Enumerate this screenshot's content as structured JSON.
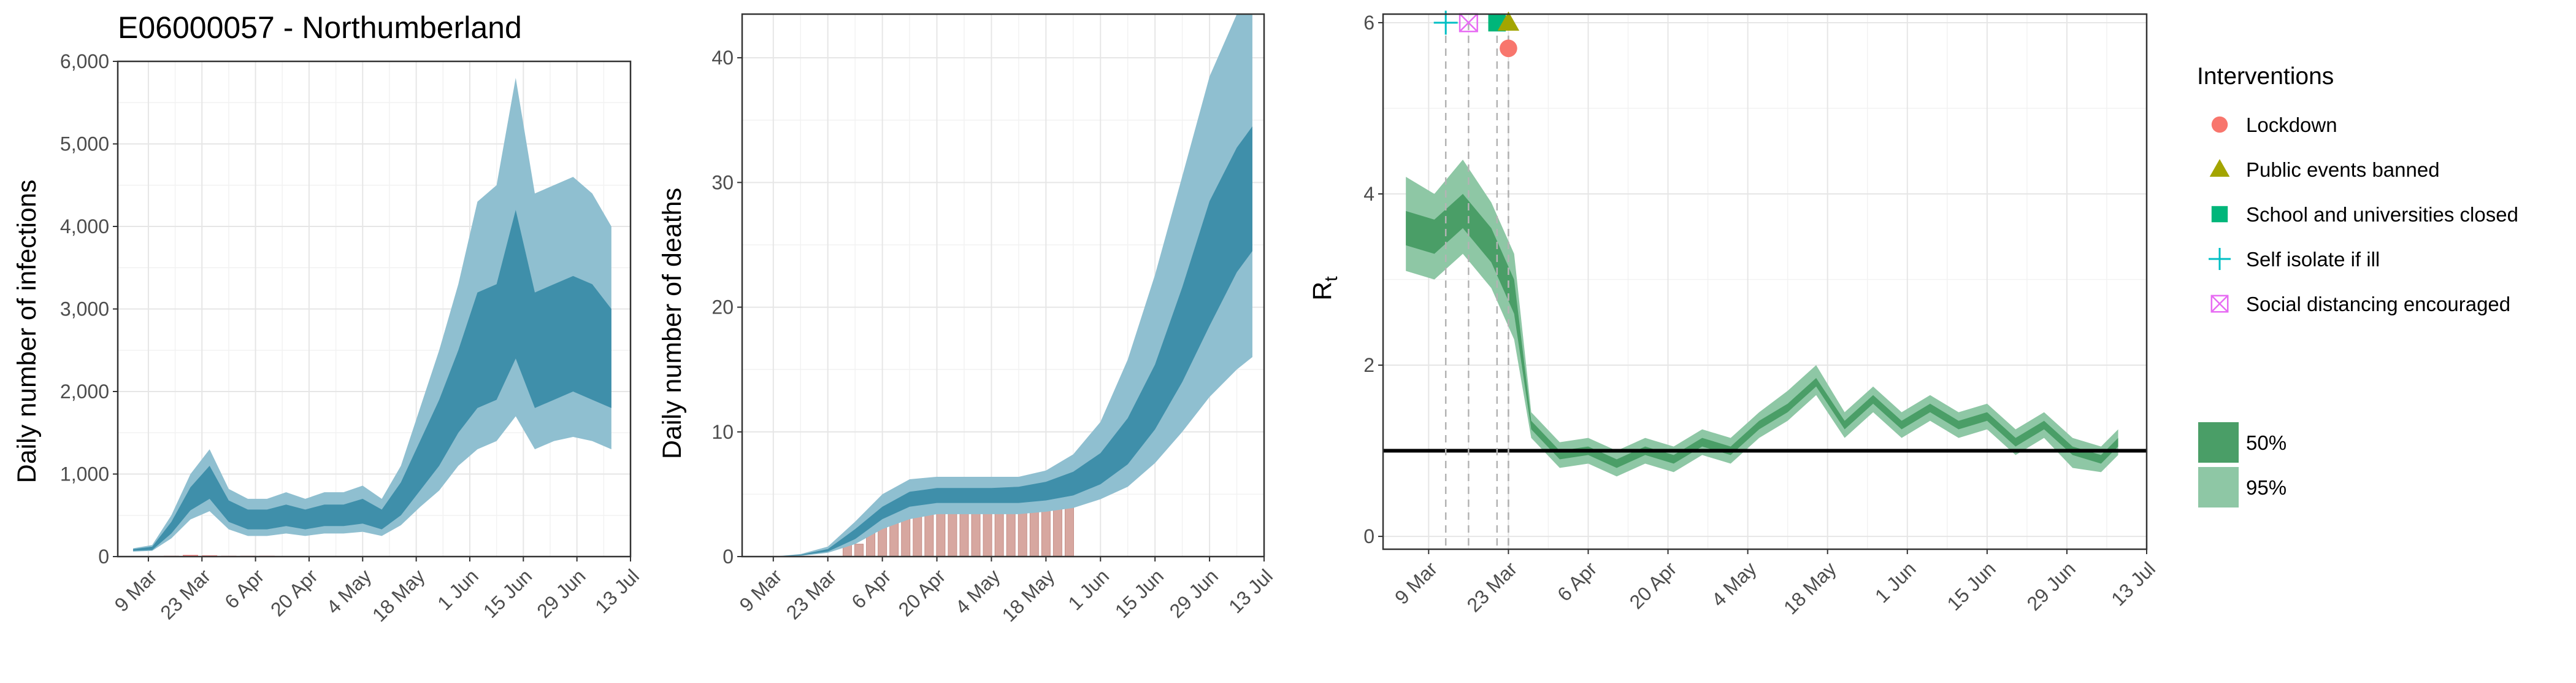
{
  "chart_data": [
    {
      "type": "area",
      "title": "E06000057 - Northumberland",
      "ylabel": "Daily number of infections",
      "x_ticks": [
        "9 Mar",
        "23 Mar",
        "6 Apr",
        "20 Apr",
        "4 May",
        "18 May",
        "1 Jun",
        "15 Jun",
        "29 Jun",
        "13 Jul"
      ],
      "x_range": [
        "2020-03-01",
        "2020-07-13"
      ],
      "y_ticks": [
        "0",
        "1,000",
        "2,000",
        "3,000",
        "4,000",
        "5,000",
        "6,000"
      ],
      "ylim": [
        0,
        6000
      ],
      "grid": true,
      "colors": {
        "band95": "#8fbfd0",
        "band50": "#3f8faa"
      },
      "x": [
        "2020-03-05",
        "2020-03-10",
        "2020-03-15",
        "2020-03-20",
        "2020-03-25",
        "2020-03-30",
        "2020-04-04",
        "2020-04-09",
        "2020-04-14",
        "2020-04-19",
        "2020-04-24",
        "2020-04-29",
        "2020-05-04",
        "2020-05-09",
        "2020-05-14",
        "2020-05-19",
        "2020-05-24",
        "2020-05-29",
        "2020-06-03",
        "2020-06-08",
        "2020-06-13",
        "2020-06-18",
        "2020-06-23",
        "2020-06-28",
        "2020-07-03",
        "2020-07-08"
      ],
      "series": [
        {
          "values": [
            80,
            100,
            350,
            700,
            900,
            550,
            450,
            450,
            500,
            450,
            500,
            500,
            550,
            450,
            700,
            1100,
            1500,
            2000,
            2500,
            2600,
            3300,
            2500,
            2600,
            2700,
            2600,
            2400
          ]
        },
        {
          "values": [
            70,
            80,
            280,
            560,
            700,
            420,
            330,
            330,
            370,
            330,
            370,
            370,
            400,
            330,
            500,
            800,
            1100,
            1500,
            1800,
            1900,
            2400,
            1800,
            1900,
            2000,
            1900,
            1800
          ]
        },
        {
          "values": [
            90,
            120,
            420,
            840,
            1100,
            680,
            570,
            570,
            630,
            570,
            630,
            630,
            700,
            570,
            900,
            1400,
            1900,
            2500,
            3200,
            3300,
            4200,
            3200,
            3300,
            3400,
            3300,
            3000
          ]
        },
        {
          "values": [
            60,
            70,
            220,
            450,
            550,
            330,
            250,
            250,
            280,
            250,
            280,
            280,
            300,
            250,
            380,
            600,
            800,
            1100,
            1300,
            1400,
            1700,
            1300,
            1400,
            1450,
            1400,
            1300
          ]
        },
        {
          "values": [
            100,
            140,
            500,
            1000,
            1300,
            820,
            700,
            700,
            780,
            700,
            780,
            780,
            860,
            700,
            1100,
            1800,
            2500,
            3300,
            4300,
            4500,
            5800,
            4400,
            4500,
            4600,
            4400,
            4000
          ]
        }
      ],
      "observed": [
        0,
        0,
        10,
        20,
        15,
        10,
        10,
        10,
        5,
        5,
        5,
        5,
        0,
        0,
        0,
        0,
        0,
        0,
        0,
        0,
        0,
        0,
        0,
        0,
        0,
        0
      ]
    },
    {
      "type": "area",
      "ylabel": "Daily number of deaths",
      "x_ticks": [
        "9 Mar",
        "23 Mar",
        "6 Apr",
        "20 Apr",
        "4 May",
        "18 May",
        "1 Jun",
        "15 Jun",
        "29 Jun",
        "13 Jul"
      ],
      "x_range": [
        "2020-03-01",
        "2020-07-13"
      ],
      "y_ticks": [
        "0",
        "10",
        "20",
        "30",
        "40"
      ],
      "ylim": [
        0,
        43.5
      ],
      "grid": true,
      "colors": {
        "band95": "#8fbfd0",
        "band50": "#3f8faa",
        "deaths": "#d7a7a0"
      },
      "x": [
        "2020-03-09",
        "2020-03-16",
        "2020-03-23",
        "2020-03-30",
        "2020-04-06",
        "2020-04-13",
        "2020-04-20",
        "2020-04-27",
        "2020-05-04",
        "2020-05-11",
        "2020-05-18",
        "2020-05-25",
        "2020-06-01",
        "2020-06-08",
        "2020-06-15",
        "2020-06-22",
        "2020-06-29",
        "2020-07-06",
        "2020-07-10"
      ],
      "series": [
        {
          "values": [
            0,
            0.1,
            0.5,
            1.8,
            3.5,
            4.6,
            4.9,
            4.9,
            4.9,
            4.9,
            5.2,
            5.8,
            7.0,
            9.2,
            12.8,
            17.8,
            23.5,
            29.0,
            31.0
          ]
        },
        {
          "values": [
            0,
            0.1,
            0.4,
            1.4,
            3.0,
            4.0,
            4.3,
            4.3,
            4.3,
            4.3,
            4.5,
            4.9,
            5.8,
            7.4,
            10.2,
            14.0,
            18.5,
            22.8,
            24.5
          ]
        },
        {
          "values": [
            0,
            0.15,
            0.6,
            2.2,
            4.0,
            5.2,
            5.5,
            5.5,
            5.5,
            5.6,
            6.0,
            6.8,
            8.3,
            11.1,
            15.4,
            21.6,
            28.5,
            32.8,
            34.5
          ]
        },
        {
          "values": [
            0,
            0.05,
            0.3,
            1.0,
            2.2,
            3.0,
            3.4,
            3.4,
            3.4,
            3.4,
            3.6,
            3.9,
            4.6,
            5.6,
            7.5,
            10.0,
            12.8,
            15.0,
            16.0
          ]
        },
        {
          "values": [
            0,
            0.2,
            0.8,
            2.8,
            5.0,
            6.2,
            6.4,
            6.4,
            6.4,
            6.4,
            6.9,
            8.2,
            10.8,
            15.8,
            22.6,
            30.5,
            38.5,
            43.5,
            43.5
          ]
        }
      ],
      "deaths_x": [
        "2020-03-28",
        "2020-03-31",
        "2020-04-03",
        "2020-04-06",
        "2020-04-09",
        "2020-04-12",
        "2020-04-15",
        "2020-04-18",
        "2020-04-21",
        "2020-04-24",
        "2020-04-27",
        "2020-04-30",
        "2020-05-03",
        "2020-05-06",
        "2020-05-09",
        "2020-05-12",
        "2020-05-15",
        "2020-05-18",
        "2020-05-21",
        "2020-05-24"
      ],
      "deaths": [
        1,
        1,
        2,
        3,
        4,
        4,
        5,
        5,
        5,
        5,
        5,
        4,
        5,
        5,
        4,
        4,
        4,
        4,
        4,
        4
      ]
    },
    {
      "type": "area",
      "ylabel": "R",
      "ylabel_sub": "t",
      "x_ticks": [
        "9 Mar",
        "23 Mar",
        "6 Apr",
        "20 Apr",
        "4 May",
        "18 May",
        "1 Jun",
        "15 Jun",
        "29 Jun",
        "13 Jul"
      ],
      "x_range": [
        "2020-03-01",
        "2020-07-13"
      ],
      "y_ticks": [
        "0",
        "2",
        "4",
        "6"
      ],
      "ylim": [
        -0.15,
        6.1
      ],
      "reference_line": 1,
      "grid": true,
      "colors": {
        "band95": "#8ec7a5",
        "band50": "#4a9e67"
      },
      "x": [
        "2020-03-05",
        "2020-03-10",
        "2020-03-15",
        "2020-03-20",
        "2020-03-24",
        "2020-03-27",
        "2020-04-01",
        "2020-04-06",
        "2020-04-11",
        "2020-04-16",
        "2020-04-21",
        "2020-04-26",
        "2020-05-01",
        "2020-05-06",
        "2020-05-11",
        "2020-05-16",
        "2020-05-21",
        "2020-05-26",
        "2020-05-31",
        "2020-06-05",
        "2020-06-10",
        "2020-06-15",
        "2020-06-20",
        "2020-06-25",
        "2020-06-30",
        "2020-07-05",
        "2020-07-08"
      ],
      "series": [
        {
          "values": [
            3.6,
            3.5,
            3.8,
            3.4,
            2.8,
            1.3,
            0.95,
            1.0,
            0.85,
            1.0,
            0.9,
            1.1,
            1.0,
            1.3,
            1.5,
            1.8,
            1.3,
            1.6,
            1.3,
            1.5,
            1.3,
            1.4,
            1.1,
            1.3,
            1.0,
            0.9,
            1.1
          ]
        },
        {
          "values": [
            3.4,
            3.3,
            3.6,
            3.2,
            2.6,
            1.25,
            0.9,
            0.95,
            0.8,
            0.95,
            0.85,
            1.05,
            0.95,
            1.25,
            1.45,
            1.75,
            1.25,
            1.55,
            1.25,
            1.45,
            1.25,
            1.35,
            1.05,
            1.25,
            0.95,
            0.85,
            1.05
          ]
        },
        {
          "values": [
            3.8,
            3.7,
            4.0,
            3.6,
            3.0,
            1.35,
            1.0,
            1.05,
            0.9,
            1.05,
            0.95,
            1.15,
            1.05,
            1.35,
            1.55,
            1.85,
            1.35,
            1.65,
            1.35,
            1.55,
            1.35,
            1.45,
            1.15,
            1.35,
            1.05,
            0.95,
            1.15
          ]
        },
        {
          "values": [
            3.1,
            3.0,
            3.3,
            2.9,
            2.3,
            1.15,
            0.8,
            0.85,
            0.7,
            0.85,
            0.75,
            0.95,
            0.85,
            1.15,
            1.35,
            1.65,
            1.15,
            1.45,
            1.15,
            1.35,
            1.15,
            1.25,
            0.95,
            1.15,
            0.8,
            0.75,
            0.95
          ]
        },
        {
          "values": [
            4.2,
            4.0,
            4.4,
            3.9,
            3.3,
            1.45,
            1.1,
            1.15,
            1.0,
            1.15,
            1.05,
            1.25,
            1.15,
            1.45,
            1.7,
            2.0,
            1.45,
            1.75,
            1.45,
            1.65,
            1.45,
            1.55,
            1.25,
            1.45,
            1.15,
            1.05,
            1.25
          ]
        }
      ],
      "interventions": [
        {
          "date": "2020-03-12",
          "symbol": "plus",
          "color": "#00bfc4",
          "y": 6.0
        },
        {
          "date": "2020-03-16",
          "symbol": "boxx",
          "color": "#e76bf3",
          "y": 6.0
        },
        {
          "date": "2020-03-21",
          "symbol": "square",
          "color": "#00b67a",
          "y": 6.0
        },
        {
          "date": "2020-03-23",
          "symbol": "triangle",
          "color": "#a3a500",
          "y": 6.0
        },
        {
          "date": "2020-03-23",
          "symbol": "circle",
          "color": "#f8766d",
          "y": 5.7
        }
      ]
    }
  ],
  "legend": {
    "title": "Interventions",
    "items": [
      {
        "label": "Lockdown",
        "symbol": "circle",
        "color": "#f8766d"
      },
      {
        "label": "Public events banned",
        "symbol": "triangle",
        "color": "#a3a500"
      },
      {
        "label": "School and universities closed",
        "symbol": "square",
        "color": "#00b67a"
      },
      {
        "label": "Self isolate if ill",
        "symbol": "plus",
        "color": "#00bfc4"
      },
      {
        "label": "Social distancing encouraged",
        "symbol": "boxx",
        "color": "#e76bf3"
      }
    ],
    "bands": [
      {
        "label": "50%",
        "color": "#4a9e67"
      },
      {
        "label": "95%",
        "color": "#8ec7a5"
      }
    ]
  }
}
